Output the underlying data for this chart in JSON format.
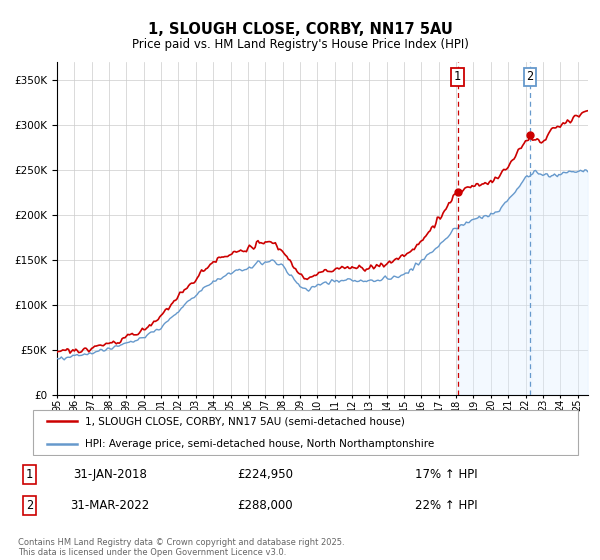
{
  "title": "1, SLOUGH CLOSE, CORBY, NN17 5AU",
  "subtitle": "Price paid vs. HM Land Registry's House Price Index (HPI)",
  "legend_line1": "1, SLOUGH CLOSE, CORBY, NN17 5AU (semi-detached house)",
  "legend_line2": "HPI: Average price, semi-detached house, North Northamptonshire",
  "annotation_footer": "Contains HM Land Registry data © Crown copyright and database right 2025.\nThis data is licensed under the Open Government Licence v3.0.",
  "sale1_date": "31-JAN-2018",
  "sale1_price": "£224,950",
  "sale1_hpi": "17% ↑ HPI",
  "sale2_date": "31-MAR-2022",
  "sale2_price": "£288,000",
  "sale2_hpi": "22% ↑ HPI",
  "sale1_x": 2018.08,
  "sale1_y": 224950,
  "sale2_x": 2022.25,
  "sale2_y": 288000,
  "vline1_x": 2018.08,
  "vline2_x": 2022.25,
  "red_color": "#cc0000",
  "blue_color": "#6699cc",
  "blue_fill_color": "#ddeeff",
  "grid_color": "#cccccc",
  "background_color": "#ffffff",
  "ylim": [
    0,
    370000
  ],
  "xlim_start": 1995.0,
  "xlim_end": 2025.6,
  "yticks": [
    0,
    50000,
    100000,
    150000,
    200000,
    250000,
    300000,
    350000
  ],
  "xtick_years": [
    1995,
    1996,
    1997,
    1998,
    1999,
    2000,
    2001,
    2002,
    2003,
    2004,
    2005,
    2006,
    2007,
    2008,
    2009,
    2010,
    2011,
    2012,
    2013,
    2014,
    2015,
    2016,
    2017,
    2018,
    2019,
    2020,
    2021,
    2022,
    2023,
    2024,
    2025
  ]
}
